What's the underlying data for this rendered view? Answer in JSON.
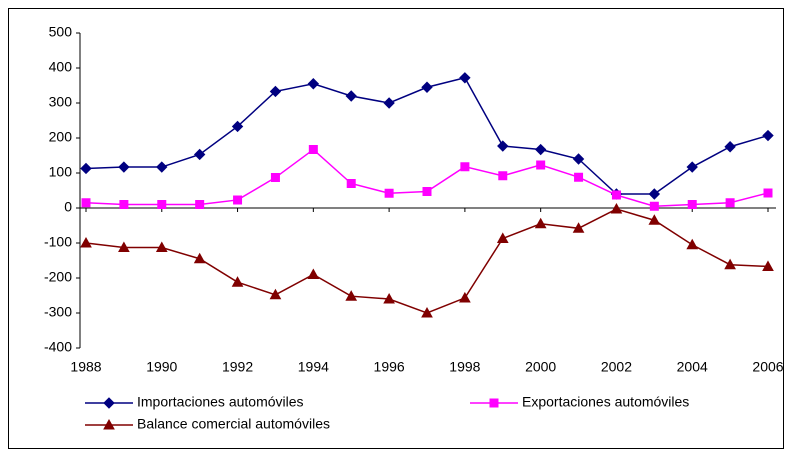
{
  "chart_data": {
    "type": "line",
    "x": [
      1988,
      1989,
      1990,
      1991,
      1992,
      1993,
      1994,
      1995,
      1996,
      1997,
      1998,
      1999,
      2000,
      2001,
      2002,
      2003,
      2004,
      2005,
      2006
    ],
    "xlim": [
      1988,
      2006
    ],
    "xticks": [
      1988,
      1990,
      1992,
      1994,
      1996,
      1998,
      2000,
      2002,
      2004,
      2006
    ],
    "ylim": [
      -400,
      500
    ],
    "yticks": [
      -400,
      -300,
      -200,
      -100,
      0,
      100,
      200,
      300,
      400,
      500
    ],
    "legend": "bottom",
    "series": [
      {
        "name": "Importaciones automóviles",
        "color": "#000080",
        "marker": "diamond",
        "values": [
          113,
          117,
          117,
          153,
          233,
          333,
          355,
          320,
          300,
          345,
          372,
          177,
          167,
          140,
          40,
          40,
          117,
          175,
          207
        ]
      },
      {
        "name": "Exportaciones automóviles",
        "color": "#ff00ff",
        "marker": "square",
        "values": [
          15,
          10,
          10,
          10,
          23,
          87,
          167,
          70,
          42,
          47,
          118,
          92,
          123,
          88,
          37,
          5,
          10,
          15,
          43
        ]
      },
      {
        "name": "Balance comercial automóviles",
        "color": "#800000",
        "marker": "triangle",
        "values": [
          -100,
          -113,
          -113,
          -145,
          -212,
          -248,
          -190,
          -252,
          -260,
          -300,
          -257,
          -87,
          -45,
          -58,
          -3,
          -35,
          -105,
          -162,
          -167
        ]
      }
    ]
  }
}
